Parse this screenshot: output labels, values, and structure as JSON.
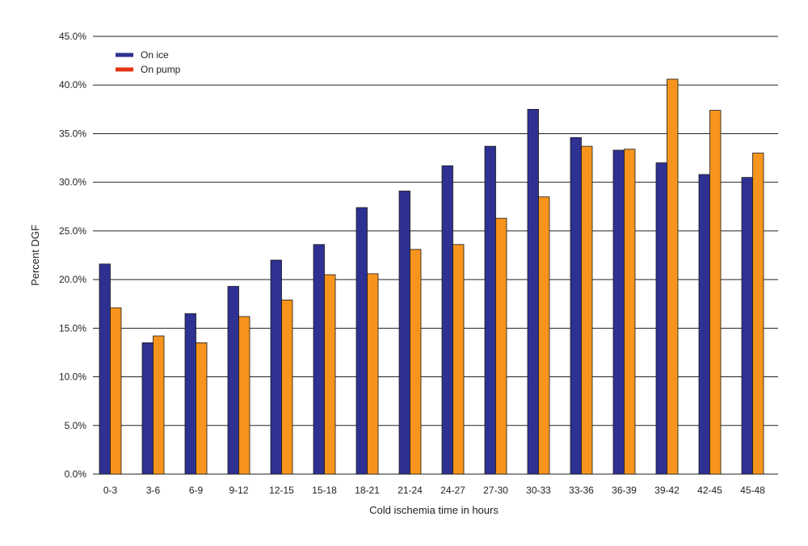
{
  "chart_data": {
    "type": "bar",
    "title": "",
    "xlabel": "Cold ischemia time in hours",
    "ylabel": "Percent DGF",
    "ylim": [
      0,
      45
    ],
    "yticks": [
      "0.0%",
      "5.0%",
      "10.0%",
      "15.0%",
      "20.0%",
      "25.0%",
      "30.0%",
      "35.0%",
      "40.0%",
      "45.0%"
    ],
    "grid": true,
    "legend_position": "top-left",
    "categories": [
      "0-3",
      "3-6",
      "6-9",
      "9-12",
      "12-15",
      "15-18",
      "18-21",
      "21-24",
      "24-27",
      "27-30",
      "30-33",
      "33-36",
      "36-39",
      "39-42",
      "42-45",
      "45-48"
    ],
    "series": [
      {
        "name": "On ice",
        "color": "#2e3192",
        "values": [
          21.6,
          13.5,
          16.5,
          19.3,
          22.0,
          23.6,
          27.4,
          29.1,
          31.7,
          33.7,
          37.5,
          34.6,
          33.3,
          32.0,
          30.8,
          30.5
        ]
      },
      {
        "name": "On pump",
        "color": "#f7941d",
        "legend_color": "#e63312",
        "values": [
          17.1,
          14.2,
          13.5,
          16.2,
          17.9,
          20.5,
          20.6,
          23.1,
          23.6,
          26.3,
          28.5,
          33.7,
          33.4,
          40.6,
          37.4,
          33.0
        ]
      }
    ]
  }
}
